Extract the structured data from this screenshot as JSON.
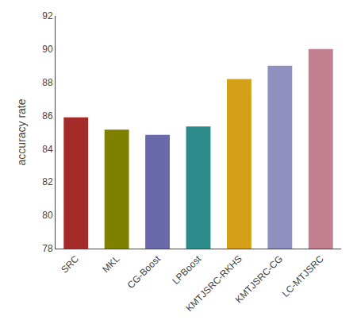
{
  "chart_data": {
    "type": "bar",
    "categories": [
      "SRC",
      "MKL",
      "CG-Boost",
      "LPBoost",
      "KMTJSRC-RKHS",
      "KMTJSRC-CG",
      "LC-MTJSRC"
    ],
    "values": [
      85.9,
      85.15,
      84.85,
      85.35,
      88.2,
      89.0,
      90.0
    ],
    "colors": [
      "#a52a2a",
      "#808000",
      "#6a6aaa",
      "#2e8b8b",
      "#d4a017",
      "#9090c0",
      "#c08090"
    ],
    "ylabel": "accuracy rate",
    "ylim": [
      78,
      92
    ],
    "yticks": [
      78,
      80,
      82,
      84,
      86,
      88,
      90,
      92
    ],
    "grid": false
  }
}
